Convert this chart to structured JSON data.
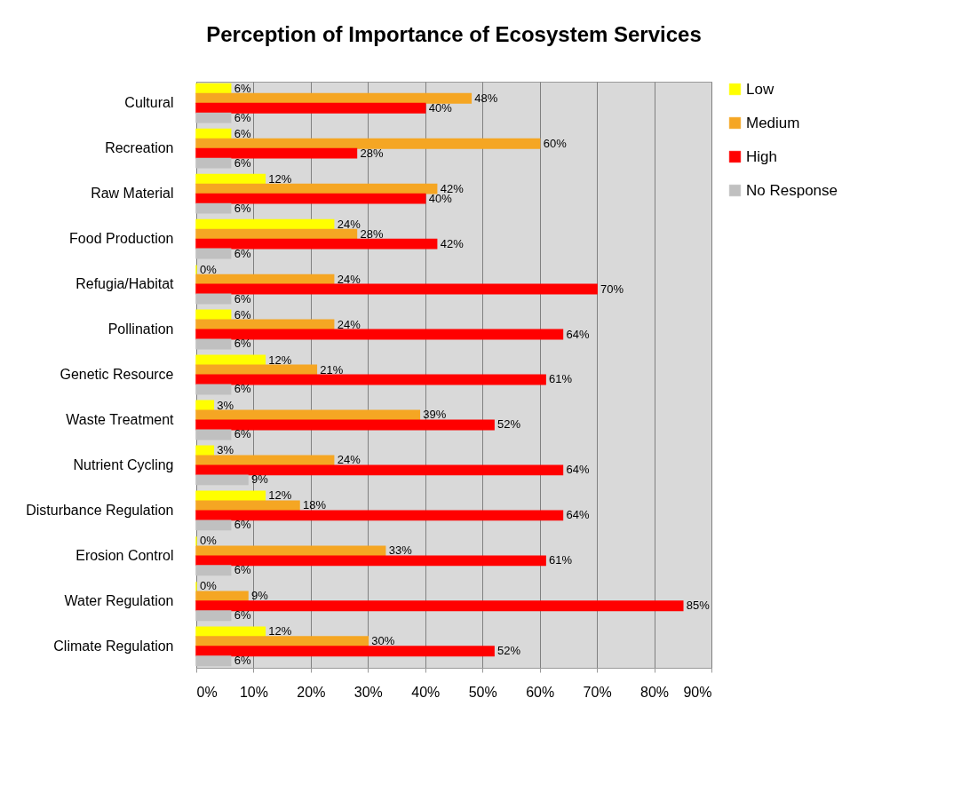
{
  "chart_data": {
    "type": "bar",
    "orientation": "horizontal",
    "title": "Perception of Importance of Ecosystem Services",
    "categories": [
      "Cultural",
      "Recreation",
      "Raw Material",
      "Food Production",
      "Refugia/Habitat",
      "Pollination",
      "Genetic Resource",
      "Waste Treatment",
      "Nutrient Cycling",
      "Disturbance Regulation",
      "Erosion Control",
      "Water Regulation",
      "Climate Regulation"
    ],
    "series": [
      {
        "name": "Low",
        "color": "#ffff00",
        "values": [
          6,
          6,
          12,
          24,
          0,
          6,
          12,
          3,
          3,
          12,
          0,
          0,
          12
        ],
        "value_labels": [
          "6%",
          "6%",
          "12%",
          "24%",
          "0%",
          "6%",
          "12%",
          "3%",
          "3%",
          "12%",
          "0%",
          "0%",
          "12%"
        ]
      },
      {
        "name": "Medium",
        "color": "#f5a623",
        "values": [
          48,
          60,
          42,
          28,
          24,
          24,
          21,
          39,
          24,
          18,
          33,
          9,
          30
        ],
        "value_labels": [
          "48%",
          "60%",
          "42%",
          "28%",
          "24%",
          "24%",
          "21%",
          "39%",
          "24%",
          "18%",
          "33%",
          "9%",
          "30%"
        ]
      },
      {
        "name": "High",
        "color": "#ff0000",
        "values": [
          40,
          28,
          40,
          42,
          70,
          64,
          61,
          52,
          64,
          64,
          61,
          85,
          52
        ],
        "value_labels": [
          "40%",
          "28%",
          "40%",
          "42%",
          "70%",
          "64%",
          "61%",
          "52%",
          "64%",
          "64%",
          "61%",
          "85%",
          "52%"
        ]
      },
      {
        "name": "No Response",
        "color": "#c0c0c0",
        "values": [
          6,
          6,
          6,
          6,
          6,
          6,
          6,
          6,
          9,
          6,
          6,
          6,
          6
        ],
        "value_labels": [
          "6%",
          "6%",
          "6%",
          "6%",
          "6%",
          "6%",
          "6%",
          "6%",
          "9%",
          "6%",
          "6%",
          "6%",
          "6%"
        ]
      }
    ],
    "xlim": [
      0,
      90
    ],
    "xticks": [
      {
        "value": 0,
        "label": "0%"
      },
      {
        "value": 10,
        "label": "10%"
      },
      {
        "value": 20,
        "label": "20%"
      },
      {
        "value": 30,
        "label": "30%"
      },
      {
        "value": 40,
        "label": "40%"
      },
      {
        "value": 50,
        "label": "50%"
      },
      {
        "value": 60,
        "label": "60%"
      },
      {
        "value": 70,
        "label": "70%"
      },
      {
        "value": 80,
        "label": "80%"
      },
      {
        "value": 90,
        "label": "90%"
      }
    ],
    "grid": "x",
    "legend": "right"
  }
}
